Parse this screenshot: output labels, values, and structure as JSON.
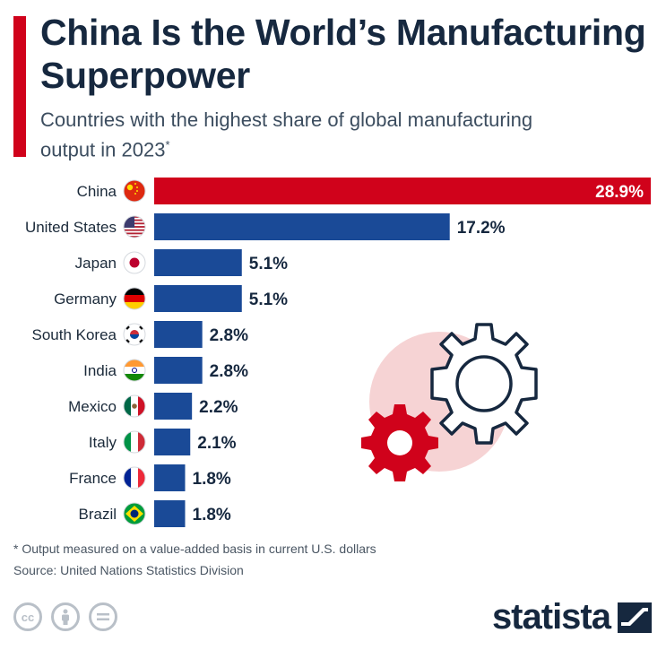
{
  "header": {
    "title": "China Is the World’s Manufacturing Superpower",
    "subtitle": "Countries with the highest share of global manufacturing output in 2023",
    "subtitle_mark": "*"
  },
  "footer": {
    "footnote": "* Output measured on a value-added basis in current U.S. dollars",
    "source": "Source: United Nations Statistics Division",
    "license_icons": [
      "cc-icon",
      "attribution-icon",
      "no-derivatives-icon"
    ],
    "logo": "statista"
  },
  "colors": {
    "highlight": "#d0021b",
    "bar": "#1a4a97",
    "text": "#16283f",
    "gear_bg": "#f6d3d4"
  },
  "chart_data": {
    "type": "bar",
    "orientation": "horizontal",
    "categories": [
      "China",
      "United States",
      "Japan",
      "Germany",
      "South Korea",
      "India",
      "Mexico",
      "Italy",
      "France",
      "Brazil"
    ],
    "values": [
      28.9,
      17.2,
      5.1,
      5.1,
      2.8,
      2.8,
      2.2,
      2.1,
      1.8,
      1.8
    ],
    "value_labels": [
      "28.9%",
      "17.2%",
      "5.1%",
      "5.1%",
      "2.8%",
      "2.8%",
      "2.2%",
      "2.1%",
      "1.8%",
      "1.8%"
    ],
    "flags": [
      "china-flag-icon",
      "usa-flag-icon",
      "japan-flag-icon",
      "germany-flag-icon",
      "south-korea-flag-icon",
      "india-flag-icon",
      "mexico-flag-icon",
      "italy-flag-icon",
      "france-flag-icon",
      "brazil-flag-icon"
    ],
    "highlight_index": 0,
    "unit": "%",
    "grid": false,
    "xlim": [
      0,
      28.9
    ]
  }
}
